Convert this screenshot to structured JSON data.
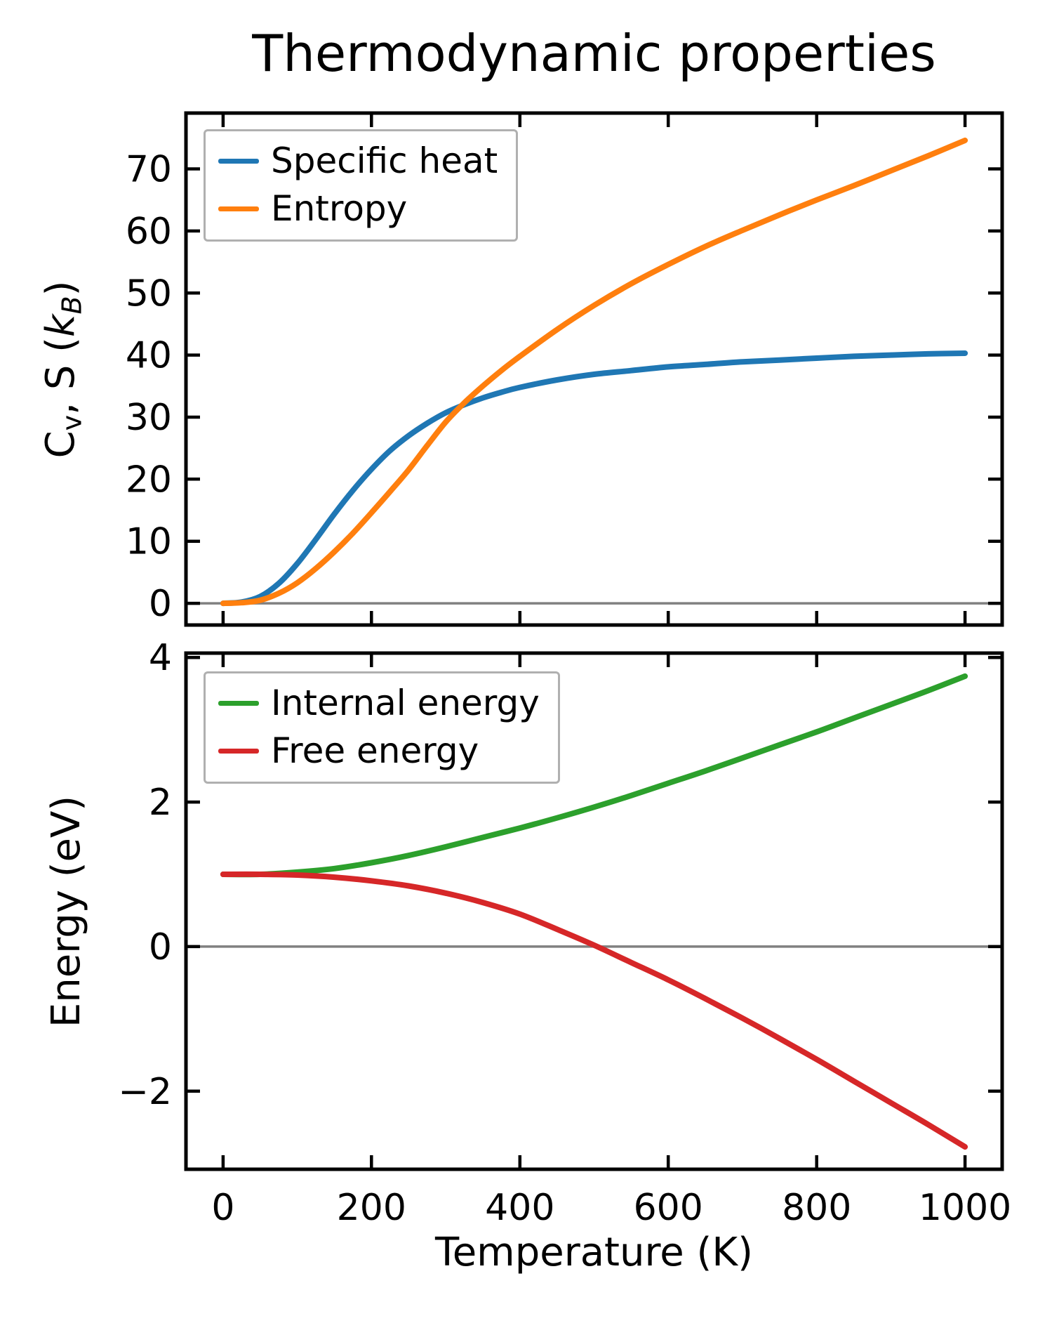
{
  "figure": {
    "title": "Thermodynamic properties",
    "background": "#ffffff"
  },
  "style": {
    "spine_color": "#000000",
    "tick_color": "#000000",
    "text_color": "#000000",
    "zero_line_color": "#808080",
    "legend_border_color": "#b0b0b0"
  },
  "chart_data": [
    {
      "type": "line",
      "title": "Thermodynamic properties",
      "xlabel": "",
      "ylabel": "Cv, S (kB)",
      "ylabel_segments": [
        {
          "t": "C"
        },
        {
          "t": "v",
          "sub": true
        },
        {
          "t": ", S ("
        },
        {
          "t": "k",
          "italic": true
        },
        {
          "t": "B",
          "sub": true,
          "italic": true
        },
        {
          "t": ")"
        }
      ],
      "xlim": [
        -50,
        1050
      ],
      "ylim": [
        -3.5,
        79.0
      ],
      "xticks": [
        0,
        200,
        400,
        600,
        800,
        1000
      ],
      "show_xtick_labels": false,
      "yticks": [
        0,
        10,
        20,
        30,
        40,
        50,
        60,
        70
      ],
      "grid": false,
      "zero_line": true,
      "legend_position": "upper-left",
      "legend_entries": [
        {
          "label": "Specific heat",
          "color": "#1f77b4"
        },
        {
          "label": "Entropy",
          "color": "#ff7f0e"
        }
      ],
      "series": [
        {
          "name": "Specific heat",
          "color": "#1f77b4",
          "x": [
            0,
            25,
            50,
            75,
            100,
            125,
            150,
            175,
            200,
            225,
            250,
            275,
            300,
            325,
            350,
            375,
            400,
            450,
            500,
            550,
            600,
            650,
            700,
            750,
            800,
            850,
            900,
            950,
            1000
          ],
          "y": [
            0,
            0.2,
            1.1,
            3.2,
            6.4,
            10.3,
            14.4,
            18.2,
            21.6,
            24.6,
            27.0,
            29.0,
            30.7,
            32.0,
            33.1,
            34.0,
            34.8,
            36.0,
            36.9,
            37.5,
            38.1,
            38.5,
            38.9,
            39.2,
            39.5,
            39.8,
            40.0,
            40.2,
            40.3
          ]
        },
        {
          "name": "Entropy",
          "color": "#ff7f0e",
          "x": [
            0,
            25,
            50,
            75,
            100,
            125,
            150,
            175,
            200,
            225,
            250,
            275,
            300,
            325,
            350,
            375,
            400,
            450,
            500,
            550,
            600,
            650,
            700,
            750,
            800,
            850,
            900,
            950,
            1000
          ],
          "y": [
            0,
            0.1,
            0.5,
            1.6,
            3.3,
            5.6,
            8.3,
            11.3,
            14.6,
            18.0,
            21.5,
            25.4,
            29.2,
            32.3,
            35.0,
            37.5,
            39.8,
            44.1,
            48.0,
            51.5,
            54.6,
            57.5,
            60.1,
            62.6,
            65.0,
            67.3,
            69.7,
            72.1,
            74.6
          ]
        }
      ]
    },
    {
      "type": "line",
      "title": "",
      "xlabel": "Temperature (K)",
      "ylabel": "Energy (eV)",
      "ylabel_segments": [
        {
          "t": "Energy (eV)"
        }
      ],
      "xlim": [
        -50,
        1050
      ],
      "ylim": [
        -3.08,
        4.06
      ],
      "xticks": [
        0,
        200,
        400,
        600,
        800,
        1000
      ],
      "show_xtick_labels": true,
      "yticks": [
        -2,
        0,
        2,
        4
      ],
      "grid": false,
      "zero_line": true,
      "legend_position": "upper-left",
      "legend_entries": [
        {
          "label": "Internal energy",
          "color": "#2ca02c"
        },
        {
          "label": "Free energy",
          "color": "#d62728"
        }
      ],
      "series": [
        {
          "name": "Internal energy",
          "color": "#2ca02c",
          "x": [
            0,
            50,
            100,
            150,
            200,
            250,
            300,
            350,
            400,
            450,
            500,
            550,
            600,
            650,
            700,
            750,
            800,
            850,
            900,
            950,
            1000
          ],
          "y": [
            1.0,
            1.0,
            1.03,
            1.08,
            1.16,
            1.26,
            1.38,
            1.51,
            1.64,
            1.78,
            1.93,
            2.09,
            2.26,
            2.43,
            2.61,
            2.79,
            2.97,
            3.16,
            3.35,
            3.54,
            3.74
          ]
        },
        {
          "name": "Free energy",
          "color": "#d62728",
          "x": [
            0,
            50,
            100,
            150,
            200,
            250,
            300,
            350,
            400,
            450,
            500,
            550,
            600,
            650,
            700,
            750,
            800,
            850,
            900,
            950,
            1000
          ],
          "y": [
            1.0,
            1.0,
            0.99,
            0.96,
            0.91,
            0.84,
            0.74,
            0.61,
            0.45,
            0.24,
            0.02,
            -0.22,
            -0.46,
            -0.72,
            -0.99,
            -1.27,
            -1.56,
            -1.86,
            -2.16,
            -2.46,
            -2.77
          ]
        }
      ]
    }
  ]
}
